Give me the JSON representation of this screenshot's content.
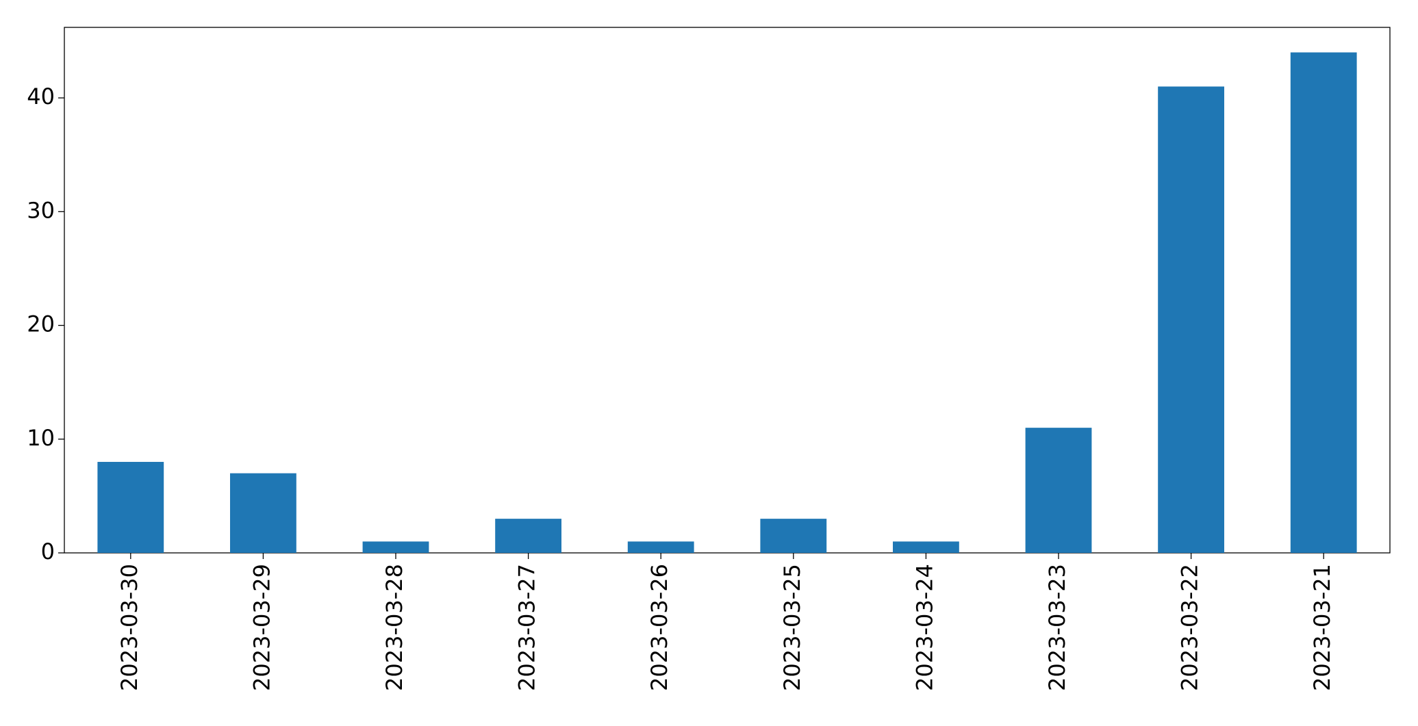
{
  "chart_data": {
    "type": "bar",
    "categories": [
      "2023-03-30",
      "2023-03-29",
      "2023-03-28",
      "2023-03-27",
      "2023-03-26",
      "2023-03-25",
      "2023-03-24",
      "2023-03-23",
      "2023-03-22",
      "2023-03-21"
    ],
    "values": [
      8,
      7,
      1,
      3,
      1,
      3,
      1,
      11,
      41,
      44
    ],
    "color": "#1f77b4",
    "ylim": [
      0,
      46.2
    ],
    "yticks": [
      0,
      10,
      20,
      30,
      40
    ],
    "grid": false
  }
}
